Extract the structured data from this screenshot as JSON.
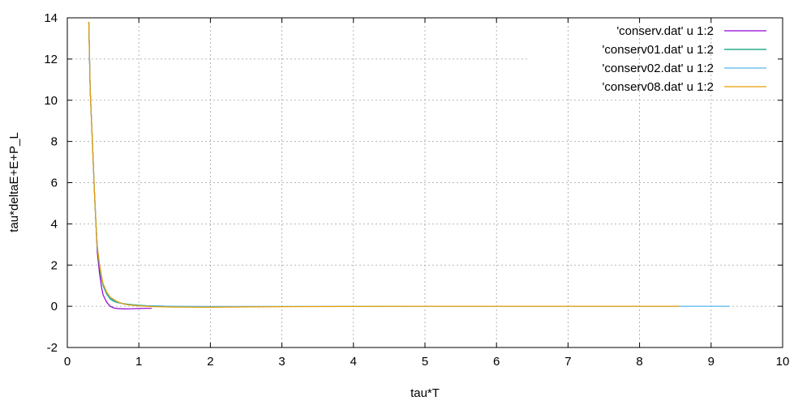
{
  "chart_data": {
    "type": "line",
    "xlabel": "tau*T",
    "ylabel": "tau*deltaE+E+P_L",
    "xlim": [
      0,
      10
    ],
    "ylim": [
      -2,
      14
    ],
    "xticks": [
      0,
      1,
      2,
      3,
      4,
      5,
      6,
      7,
      8,
      9,
      10
    ],
    "yticks": [
      -2,
      0,
      2,
      4,
      6,
      8,
      10,
      12,
      14
    ],
    "grid": true,
    "legend_position": "top-right",
    "series": [
      {
        "name": "'conserv.dat' u 1:2",
        "color": "#9400d3",
        "x": [
          0.3,
          0.32,
          0.35,
          0.38,
          0.4,
          0.42,
          0.45,
          0.48,
          0.5,
          0.55,
          0.6,
          0.65,
          0.7,
          0.8,
          0.9,
          1.0,
          1.1,
          1.18
        ],
        "y": [
          13.8,
          10.5,
          8.0,
          5.5,
          4.0,
          2.6,
          1.6,
          0.9,
          0.55,
          0.2,
          0.0,
          -0.08,
          -0.11,
          -0.13,
          -0.12,
          -0.11,
          -0.1,
          -0.1
        ]
      },
      {
        "name": "'conserv01.dat' u 1:2",
        "color": "#009e73",
        "x": [
          0.3,
          0.32,
          0.35,
          0.38,
          0.4,
          0.42,
          0.45,
          0.48,
          0.5,
          0.55,
          0.6,
          0.65,
          0.7,
          0.8,
          0.9,
          1.0,
          1.1,
          1.2,
          1.35
        ],
        "y": [
          13.8,
          10.5,
          8.0,
          5.5,
          4.0,
          2.8,
          1.9,
          1.3,
          1.0,
          0.6,
          0.35,
          0.25,
          0.18,
          0.12,
          0.08,
          0.05,
          0.03,
          0.02,
          0.01
        ]
      },
      {
        "name": "'conserv02.dat' u 1:2",
        "color": "#56b4e9",
        "x": [
          0.3,
          0.32,
          0.35,
          0.38,
          0.4,
          0.42,
          0.45,
          0.48,
          0.5,
          0.55,
          0.6,
          0.7,
          0.8,
          0.9,
          1.0,
          1.2,
          1.5,
          2.0,
          3.0,
          5.0,
          7.0,
          8.5,
          9.26
        ],
        "y": [
          13.8,
          10.5,
          8.0,
          5.5,
          4.0,
          2.9,
          2.0,
          1.4,
          1.05,
          0.65,
          0.4,
          0.2,
          0.1,
          0.06,
          0.03,
          0.01,
          0.0,
          -0.01,
          -0.01,
          0.0,
          0.0,
          0.0,
          0.0
        ]
      },
      {
        "name": "'conserv08.dat' u 1:2",
        "color": "#e69f00",
        "x": [
          0.3,
          0.32,
          0.35,
          0.38,
          0.4,
          0.42,
          0.45,
          0.48,
          0.5,
          0.55,
          0.6,
          0.7,
          0.8,
          0.9,
          1.0,
          1.2,
          1.5,
          2.0,
          2.2,
          3.0,
          5.0,
          7.0,
          8.55
        ],
        "y": [
          13.8,
          10.5,
          8.0,
          5.5,
          4.0,
          2.9,
          2.05,
          1.45,
          1.1,
          0.7,
          0.45,
          0.22,
          0.1,
          0.05,
          0.02,
          -0.02,
          -0.04,
          -0.05,
          -0.04,
          -0.02,
          0.0,
          0.0,
          0.0
        ]
      }
    ]
  }
}
